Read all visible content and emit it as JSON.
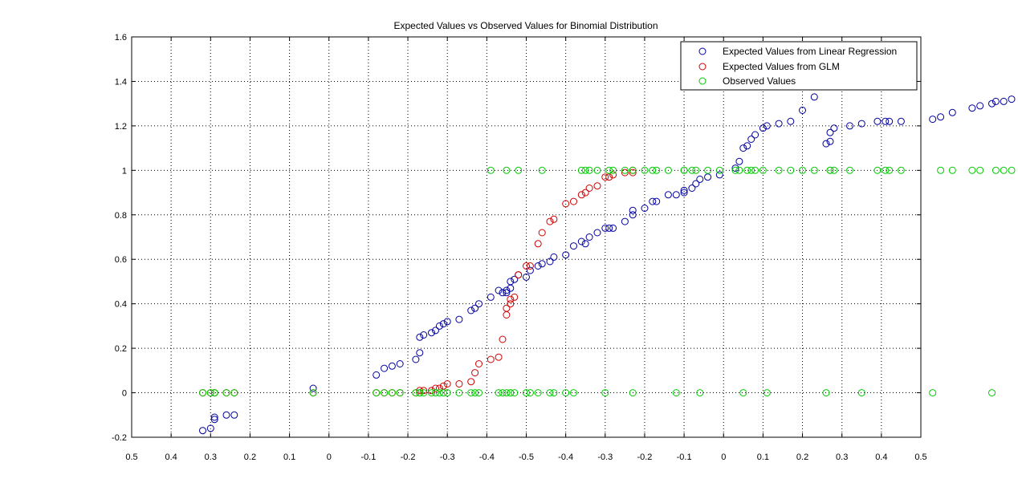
{
  "chart_data": {
    "type": "scatter",
    "title": "Expected Values vs Observed Values for Binomial Distribution",
    "xlabel": "",
    "ylabel": "",
    "ylim": [
      -0.2,
      1.6
    ],
    "yticks": [
      "-0.2",
      "0",
      "0.2",
      "0.4",
      "0.6",
      "0.8",
      "1",
      "1.2",
      "1.4",
      "1.6"
    ],
    "xtick_labels": [
      "0.5",
      "0.4",
      "0.3",
      "0.2",
      "0.1",
      "0",
      "-0.1",
      "-0.2",
      "-0.3",
      "-0.4",
      "-0.5",
      "-0.4",
      "-0.3",
      "-0.2",
      "-0.1",
      "0",
      "0.1",
      "0.2",
      "0.3",
      "0.4",
      "0.5"
    ],
    "x_note": "linear predictor; the axis tick labels are unusual and printed as shown",
    "grid": true,
    "legend_position": "top-right",
    "series": [
      {
        "name": "Expected Values from Linear Regression",
        "color": "#0000a0",
        "x": [
          -0.82,
          -0.8,
          -0.79,
          -0.79,
          -0.76,
          -0.74,
          -0.54,
          -0.38,
          -0.36,
          -0.34,
          -0.32,
          -0.28,
          -0.27,
          -0.27,
          -0.26,
          -0.24,
          -0.23,
          -0.22,
          -0.21,
          -0.2,
          -0.17,
          -0.14,
          -0.13,
          -0.12,
          -0.09,
          -0.07,
          -0.06,
          -0.05,
          -0.05,
          -0.04,
          -0.04,
          -0.03,
          -0.02,
          0.0,
          0.01,
          0.03,
          0.04,
          0.06,
          0.07,
          0.1,
          0.12,
          0.14,
          0.15,
          0.16,
          0.18,
          0.2,
          0.21,
          0.22,
          0.25,
          0.27,
          0.27,
          0.3,
          0.32,
          0.33,
          0.36,
          0.38,
          0.4,
          0.4,
          0.42,
          0.43,
          0.44,
          0.46,
          0.49,
          0.53,
          0.54,
          0.55,
          0.56,
          0.57,
          0.58,
          0.6,
          0.61,
          0.64,
          0.67,
          0.7,
          0.73,
          0.76,
          0.77,
          0.77,
          0.78,
          0.82,
          0.85,
          0.89,
          0.91,
          0.92,
          0.95,
          1.03,
          1.05,
          1.08,
          1.13,
          1.15,
          1.18,
          1.19,
          1.21,
          1.23,
          1.27,
          1.28,
          1.31,
          1.32,
          1.33,
          1.34,
          1.35,
          1.4,
          1.49
        ],
        "y": [
          -0.17,
          -0.16,
          -0.12,
          -0.11,
          -0.1,
          -0.1,
          0.02,
          0.08,
          0.11,
          0.12,
          0.13,
          0.15,
          0.18,
          0.25,
          0.26,
          0.27,
          0.28,
          0.3,
          0.31,
          0.32,
          0.33,
          0.37,
          0.38,
          0.4,
          0.43,
          0.46,
          0.45,
          0.45,
          0.46,
          0.47,
          0.5,
          0.51,
          0.53,
          0.52,
          0.55,
          0.57,
          0.58,
          0.59,
          0.61,
          0.62,
          0.66,
          0.68,
          0.67,
          0.7,
          0.72,
          0.74,
          0.74,
          0.74,
          0.77,
          0.8,
          0.82,
          0.83,
          0.86,
          0.86,
          0.89,
          0.89,
          0.9,
          0.91,
          0.92,
          0.94,
          0.96,
          0.97,
          0.98,
          1.01,
          1.04,
          1.1,
          1.11,
          1.14,
          1.16,
          1.19,
          1.2,
          1.21,
          1.22,
          1.27,
          1.33,
          1.12,
          1.13,
          1.17,
          1.19,
          1.2,
          1.21,
          1.22,
          1.22,
          1.22,
          1.22,
          1.23,
          1.24,
          1.26,
          1.28,
          1.29,
          1.3,
          1.31,
          1.31,
          1.32,
          1.33,
          1.33,
          1.34,
          1.34,
          1.35,
          1.35,
          1.36,
          1.37,
          1.4
        ]
      },
      {
        "name": "Expected Values from GLM",
        "color": "#d00000",
        "x": [
          -0.82,
          -0.8,
          -0.79,
          -0.79,
          -0.76,
          -0.74,
          -0.54,
          -0.38,
          -0.36,
          -0.34,
          -0.32,
          -0.28,
          -0.27,
          -0.27,
          -0.26,
          -0.24,
          -0.23,
          -0.22,
          -0.21,
          -0.2,
          -0.17,
          -0.14,
          -0.13,
          -0.12,
          -0.09,
          -0.07,
          -0.06,
          -0.05,
          -0.05,
          -0.04,
          -0.04,
          -0.03,
          -0.02,
          0.0,
          0.01,
          0.03,
          0.04,
          0.06,
          0.07,
          0.1,
          0.12,
          0.14,
          0.15,
          0.16,
          0.18,
          0.2,
          0.21,
          0.22,
          0.25,
          0.27,
          0.27
        ],
        "y": [
          0.0,
          0.0,
          0.0,
          0.0,
          0.0,
          0.0,
          0.0,
          0.0,
          0.0,
          0.0,
          0.0,
          0.0,
          0.0,
          0.01,
          0.01,
          0.01,
          0.02,
          0.02,
          0.03,
          0.04,
          0.04,
          0.05,
          0.09,
          0.13,
          0.15,
          0.16,
          0.24,
          0.35,
          0.38,
          0.4,
          0.42,
          0.43,
          0.53,
          0.57,
          0.57,
          0.67,
          0.72,
          0.77,
          0.78,
          0.85,
          0.86,
          0.89,
          0.9,
          0.92,
          0.93,
          0.97,
          0.97,
          0.98,
          0.99,
          0.99,
          1.0
        ]
      },
      {
        "name": "Observed Values",
        "color": "#00cc00",
        "y_values": [
          0,
          1
        ]
      }
    ]
  }
}
